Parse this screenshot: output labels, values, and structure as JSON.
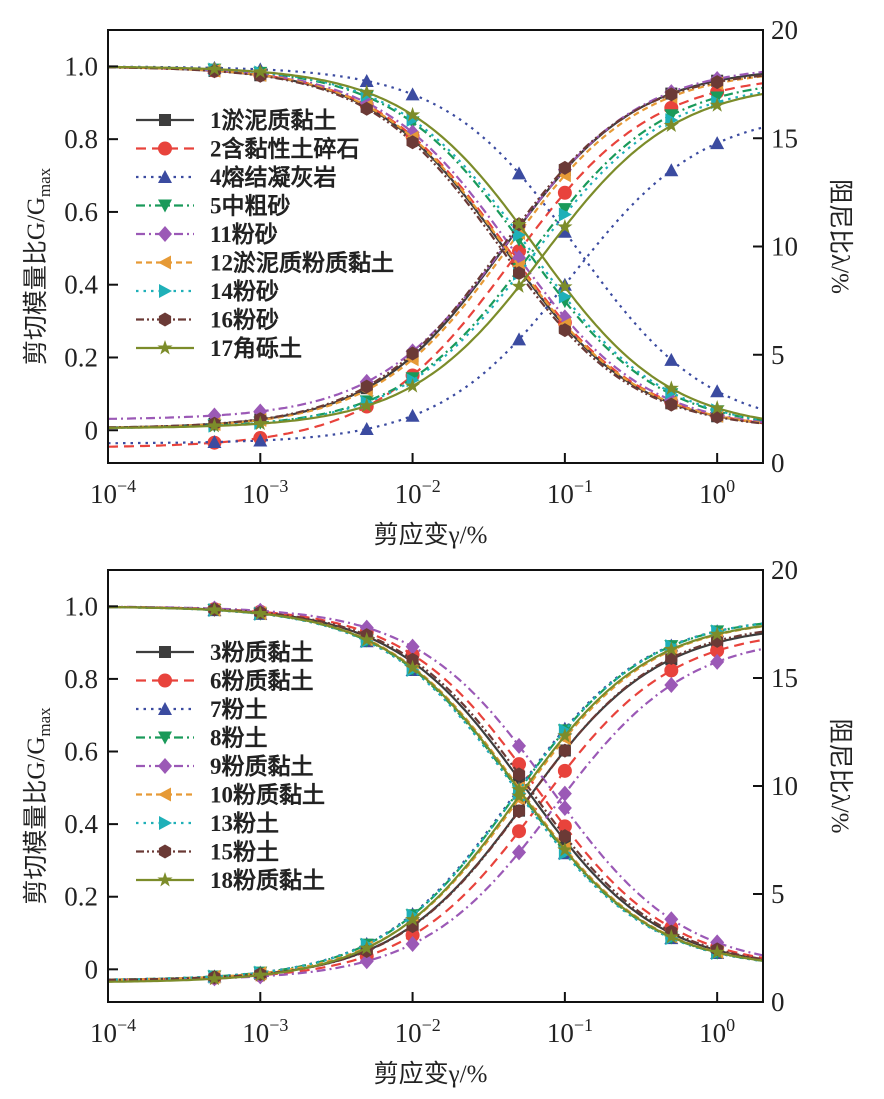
{
  "chart_data": [
    {
      "type": "line",
      "panel": "top",
      "xlabel": "剪应变γ/%",
      "ylabel_left": "剪切模量比G/Gmax",
      "ylabel_right": "阻尼比λ/%",
      "xscale": "log",
      "xlim": [
        0.0001,
        2
      ],
      "ylim_left": [
        -0.09,
        1.1
      ],
      "ylim_right": [
        0,
        20
      ],
      "x_ticks": [
        "10^-4",
        "10^-3",
        "10^-2",
        "10^-1",
        "10^0"
      ],
      "y_left_ticks": [
        "0",
        "0.2",
        "0.4",
        "0.6",
        "0.8",
        "1.0"
      ],
      "y_right_ticks": [
        "0",
        "5",
        "10",
        "15",
        "20"
      ],
      "legend_position": "left",
      "marker_x": [
        0.0005,
        0.001,
        0.005,
        0.01,
        0.05,
        0.1,
        0.5,
        1.0
      ],
      "series": [
        {
          "name": "1淤泥质黏土",
          "color": "#3d3d3d",
          "dash": "solid",
          "marker": "square",
          "g_ratio_params": {
            "gamma_ref": 0.04,
            "exp": 1.0
          },
          "damping_params": {
            "min": 1.6,
            "max": 18.3,
            "gamma_ref": 0.04,
            "exp": 1.0
          }
        },
        {
          "name": "2含黏性土碎石",
          "color": "#e8433c",
          "dash": "dash",
          "marker": "circle",
          "g_ratio_params": {
            "gamma_ref": 0.042,
            "exp": 1.0
          },
          "damping_params": {
            "min": 0.7,
            "max": 18.0,
            "gamma_ref": 0.045,
            "exp": 0.95
          }
        },
        {
          "name": "4熔结凝灰岩",
          "color": "#3b4ba0",
          "dash": "dot",
          "marker": "triangle-up",
          "g_ratio_params": {
            "gamma_ref": 0.12,
            "exp": 1.0
          },
          "damping_params": {
            "min": 0.9,
            "max": 16.3,
            "gamma_ref": 0.11,
            "exp": 1.0
          }
        },
        {
          "name": "5中粗砂",
          "color": "#1a9a5a",
          "dash": "dashdot",
          "marker": "triangle-down",
          "g_ratio_params": {
            "gamma_ref": 0.055,
            "exp": 1.0
          },
          "damping_params": {
            "min": 1.6,
            "max": 17.8,
            "gamma_ref": 0.06,
            "exp": 1.0
          }
        },
        {
          "name": "11粉砂",
          "color": "#9b59b6",
          "dash": "dashdot",
          "marker": "diamond",
          "g_ratio_params": {
            "gamma_ref": 0.045,
            "exp": 1.0
          },
          "damping_params": {
            "min": 2.0,
            "max": 18.4,
            "gamma_ref": 0.042,
            "exp": 1.0
          }
        },
        {
          "name": "12淤泥质粉质黏土",
          "color": "#e69a36",
          "dash": "shortdash",
          "marker": "triangle-left",
          "g_ratio_params": {
            "gamma_ref": 0.041,
            "exp": 1.0
          },
          "damping_params": {
            "min": 1.6,
            "max": 18.2,
            "gamma_ref": 0.042,
            "exp": 1.0
          }
        },
        {
          "name": "14粉砂",
          "color": "#1fb0b8",
          "dash": "dot",
          "marker": "triangle-right",
          "g_ratio_params": {
            "gamma_ref": 0.058,
            "exp": 1.0
          },
          "damping_params": {
            "min": 1.6,
            "max": 17.6,
            "gamma_ref": 0.062,
            "exp": 1.0
          }
        },
        {
          "name": "16粉砂",
          "color": "#6b3a36",
          "dash": "dashdotdot",
          "marker": "hexagon",
          "g_ratio_params": {
            "gamma_ref": 0.038,
            "exp": 1.0
          },
          "damping_params": {
            "min": 1.6,
            "max": 18.2,
            "gamma_ref": 0.038,
            "exp": 1.0
          }
        },
        {
          "name": "17角砾土",
          "color": "#7c8c2a",
          "dash": "solid",
          "marker": "star",
          "g_ratio_params": {
            "gamma_ref": 0.065,
            "exp": 1.0
          },
          "damping_params": {
            "min": 1.6,
            "max": 17.6,
            "gamma_ref": 0.072,
            "exp": 1.0
          }
        }
      ]
    },
    {
      "type": "line",
      "panel": "bottom",
      "xlabel": "剪应变γ/%",
      "ylabel_left": "剪切模量比G/Gmax",
      "ylabel_right": "阻尼比λ/%",
      "xscale": "log",
      "xlim": [
        0.0001,
        2
      ],
      "ylim_left": [
        -0.09,
        1.1
      ],
      "ylim_right": [
        0,
        20
      ],
      "x_ticks": [
        "10^-4",
        "10^-3",
        "10^-2",
        "10^-1",
        "10^0"
      ],
      "y_left_ticks": [
        "0",
        "0.2",
        "0.4",
        "0.6",
        "0.8",
        "1.0"
      ],
      "y_right_ticks": [
        "0",
        "5",
        "10",
        "15",
        "20"
      ],
      "legend_position": "left",
      "marker_x": [
        0.0005,
        0.001,
        0.005,
        0.01,
        0.05,
        0.1,
        0.5,
        1.0
      ],
      "series": [
        {
          "name": "3粉质黏土",
          "color": "#3d3d3d",
          "dash": "solid",
          "marker": "square",
          "g_ratio_params": {
            "gamma_ref": 0.055,
            "exp": 1.0
          },
          "damping_params": {
            "min": 1.0,
            "max": 17.5,
            "gamma_ref": 0.055,
            "exp": 1.0
          }
        },
        {
          "name": "6粉质黏土",
          "color": "#e8433c",
          "dash": "dash",
          "marker": "circle",
          "g_ratio_params": {
            "gamma_ref": 0.065,
            "exp": 1.0
          },
          "damping_params": {
            "min": 1.0,
            "max": 17.3,
            "gamma_ref": 0.068,
            "exp": 1.0
          }
        },
        {
          "name": "7粉土",
          "color": "#3b4ba0",
          "dash": "dot",
          "marker": "triangle-up",
          "g_ratio_params": {
            "gamma_ref": 0.047,
            "exp": 1.0
          },
          "damping_params": {
            "min": 1.0,
            "max": 17.9,
            "gamma_ref": 0.045,
            "exp": 1.0
          }
        },
        {
          "name": "8粉土",
          "color": "#1a9a5a",
          "dash": "dashdot",
          "marker": "triangle-down",
          "g_ratio_params": {
            "gamma_ref": 0.048,
            "exp": 1.0
          },
          "damping_params": {
            "min": 1.0,
            "max": 17.9,
            "gamma_ref": 0.046,
            "exp": 1.0
          }
        },
        {
          "name": "9粉质黏土",
          "color": "#9b59b6",
          "dash": "dashdot",
          "marker": "diamond",
          "g_ratio_params": {
            "gamma_ref": 0.08,
            "exp": 1.0
          },
          "damping_params": {
            "min": 1.0,
            "max": 17.0,
            "gamma_ref": 0.085,
            "exp": 1.0
          }
        },
        {
          "name": "10粉质黏土",
          "color": "#e69a36",
          "dash": "shortdash",
          "marker": "triangle-left",
          "g_ratio_params": {
            "gamma_ref": 0.05,
            "exp": 1.0
          },
          "damping_params": {
            "min": 1.0,
            "max": 17.8,
            "gamma_ref": 0.05,
            "exp": 1.0
          }
        },
        {
          "name": "13粉土",
          "color": "#1fb0b8",
          "dash": "dot",
          "marker": "triangle-right",
          "g_ratio_params": {
            "gamma_ref": 0.047,
            "exp": 1.0
          },
          "damping_params": {
            "min": 1.0,
            "max": 17.9,
            "gamma_ref": 0.046,
            "exp": 1.0
          }
        },
        {
          "name": "15粉土",
          "color": "#6b3a36",
          "dash": "dashdotdot",
          "marker": "hexagon",
          "g_ratio_params": {
            "gamma_ref": 0.058,
            "exp": 1.0
          },
          "damping_params": {
            "min": 1.0,
            "max": 17.6,
            "gamma_ref": 0.056,
            "exp": 1.0
          }
        },
        {
          "name": "18粉质黏土",
          "color": "#7c8c2a",
          "dash": "solid",
          "marker": "star",
          "g_ratio_params": {
            "gamma_ref": 0.049,
            "exp": 1.0
          },
          "damping_params": {
            "min": 0.9,
            "max": 17.8,
            "gamma_ref": 0.048,
            "exp": 1.0
          }
        }
      ]
    }
  ]
}
